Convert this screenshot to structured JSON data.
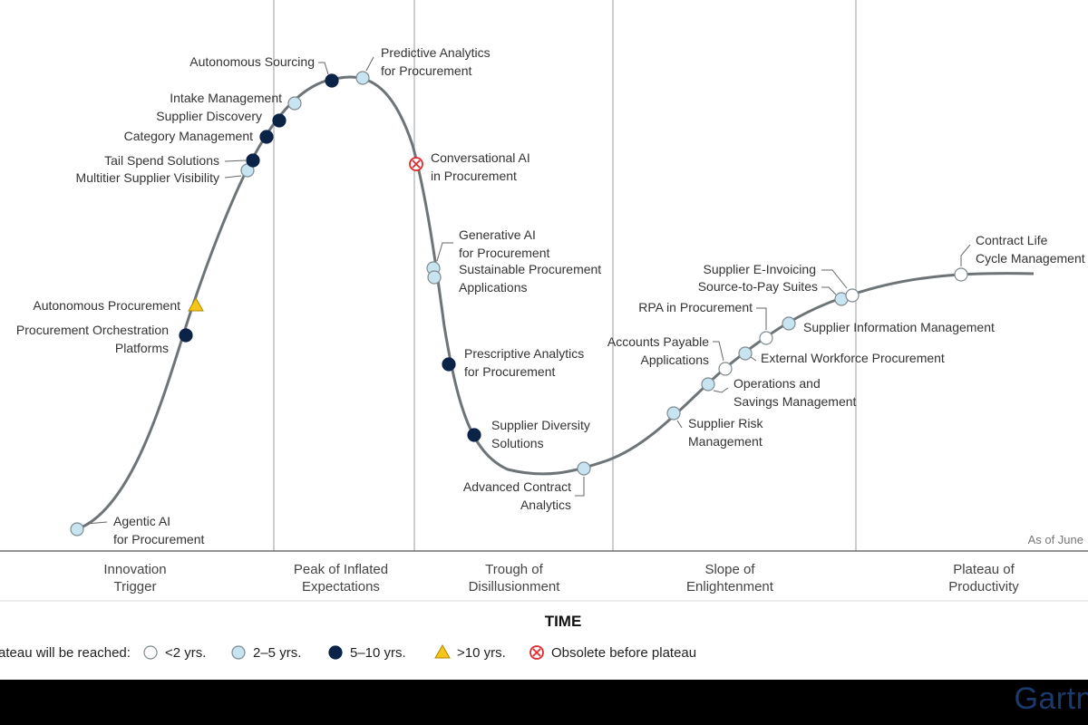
{
  "chart_data": {
    "type": "scatter",
    "title": "",
    "xlabel": "TIME",
    "as_of": "As of June",
    "phases": [
      "Innovation\nTrigger",
      "Peak of Inflated\nExpectations",
      "Trough of\nDisillusionment",
      "Slope of\nEnlightenment",
      "Plateau of\nProductivity"
    ],
    "legend": {
      "prefix": "ateau will be reached:",
      "entries": [
        {
          "key": "lt2",
          "label": "<2 yrs."
        },
        {
          "key": "2to5",
          "label": "2–5 yrs."
        },
        {
          "key": "5to10",
          "label": "5–10 yrs."
        },
        {
          "key": "gt10",
          "label": ">10 yrs."
        },
        {
          "key": "obsolete",
          "label": "Obsolete before plateau"
        }
      ]
    },
    "points": [
      {
        "name": "Agentic AI\nfor Procurement",
        "category": "2to5"
      },
      {
        "name": "Procurement Orchestration\nPlatforms",
        "category": "5to10"
      },
      {
        "name": "Autonomous Procurement",
        "category": "gt10"
      },
      {
        "name": "Multitier Supplier Visibility",
        "category": "2to5"
      },
      {
        "name": "Tail Spend Solutions",
        "category": "5to10"
      },
      {
        "name": "Category Management",
        "category": "5to10"
      },
      {
        "name": "Supplier Discovery",
        "category": "5to10"
      },
      {
        "name": "Intake Management",
        "category": "2to5"
      },
      {
        "name": "Autonomous Sourcing",
        "category": "5to10"
      },
      {
        "name": "Predictive Analytics\nfor Procurement",
        "category": "2to5"
      },
      {
        "name": "Conversational AI\nin Procurement",
        "category": "obsolete"
      },
      {
        "name": "Generative AI\nfor Procurement",
        "category": "2to5"
      },
      {
        "name": "Sustainable Procurement\nApplications",
        "category": "2to5"
      },
      {
        "name": "Prescriptive Analytics\nfor Procurement",
        "category": "5to10"
      },
      {
        "name": "Supplier Diversity\nSolutions",
        "category": "5to10"
      },
      {
        "name": "Advanced Contract\nAnalytics",
        "category": "2to5"
      },
      {
        "name": "Supplier Risk\nManagement",
        "category": "2to5"
      },
      {
        "name": "Operations and\nSavings Management",
        "category": "2to5"
      },
      {
        "name": "Accounts Payable\nApplications",
        "category": "lt2"
      },
      {
        "name": "External Workforce Procurement",
        "category": "2to5"
      },
      {
        "name": "RPA in Procurement",
        "category": "lt2"
      },
      {
        "name": "Supplier Information Management",
        "category": "2to5"
      },
      {
        "name": "Source-to-Pay Suites",
        "category": "2to5"
      },
      {
        "name": "Supplier E-Invoicing",
        "category": "lt2"
      },
      {
        "name": "Contract Life\nCycle Management",
        "category": "lt2"
      }
    ]
  },
  "colors": {
    "lt2": "#ffffff",
    "2to5": "#c8e4f0",
    "5to10": "#0b2347",
    "gt10": "#f5c518",
    "obsolete": "#e0282e",
    "curve": "#6d7478",
    "divider": "#a9aeb1"
  },
  "footer": {
    "brand": "Gartn"
  }
}
